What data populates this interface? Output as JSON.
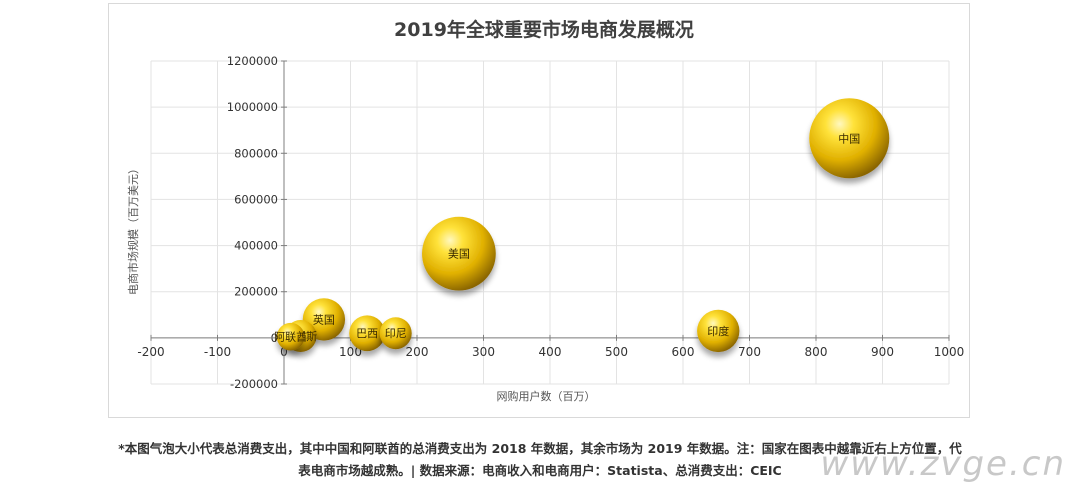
{
  "chart_data": {
    "type": "scatter",
    "title": "2019年全球重要市场电商发展概况",
    "xlabel": "网购用户数（百万）",
    "ylabel": "电商市场规模（百万美元）",
    "xlim": [
      -200,
      1000
    ],
    "ylim": [
      -200000,
      1200000
    ],
    "x_ticks": [
      "-200",
      "-100",
      "0",
      "100",
      "200",
      "300",
      "400",
      "500",
      "600",
      "700",
      "800",
      "900",
      "1000"
    ],
    "y_ticks": [
      "-200000",
      "0",
      "200000",
      "400000",
      "600000",
      "800000",
      "1000000",
      "1200000"
    ],
    "grid": true,
    "legend": "none",
    "bubbles": [
      {
        "label": "中国",
        "x": 850,
        "y": 865000,
        "size": 1.0
      },
      {
        "label": "美国",
        "x": 263,
        "y": 365000,
        "size": 0.85
      },
      {
        "label": "英国",
        "x": 60,
        "y": 80000,
        "size": 0.28
      },
      {
        "label": "印度",
        "x": 653,
        "y": 30000,
        "size": 0.28
      },
      {
        "label": "巴西",
        "x": 125,
        "y": 20000,
        "size": 0.2
      },
      {
        "label": "印尼",
        "x": 168,
        "y": 20000,
        "size": 0.16
      },
      {
        "label": "俄罗斯",
        "x": 25,
        "y": 8000,
        "size": 0.16
      },
      {
        "label": "阿联酋",
        "x": 10,
        "y": 5000,
        "size": 0.12
      }
    ]
  },
  "footnote": {
    "line1": "*本图气泡大小代表总消费支出，其中中国和阿联酋的总消费支出为 2018 年数据，其余市场为 2019 年数据。注：国家在图表中越靠近右上方位置，代",
    "line2": "表电商市场越成熟。| 数据来源：电商收入和电商用户：Statista、总消费支出：CEIC"
  },
  "watermark": "www.zvge.cn"
}
